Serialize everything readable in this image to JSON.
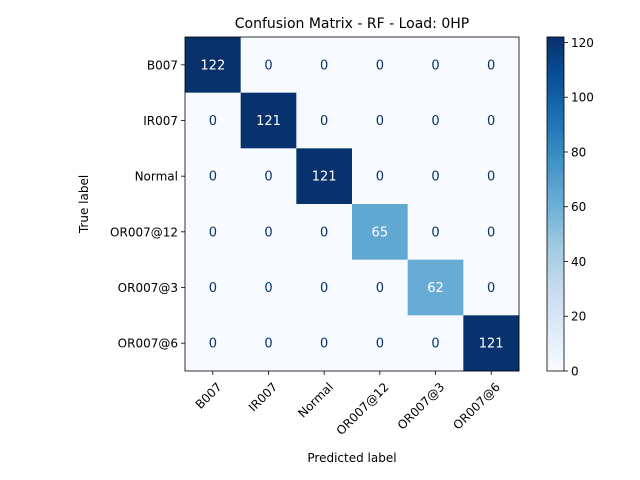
{
  "chart_data": {
    "type": "heatmap",
    "title": "Confusion Matrix - RF - Load: 0HP",
    "xlabel": "Predicted label",
    "ylabel": "True label",
    "x_categories": [
      "B007",
      "IR007",
      "Normal",
      "OR007@12",
      "OR007@3",
      "OR007@6"
    ],
    "y_categories": [
      "B007",
      "IR007",
      "Normal",
      "OR007@12",
      "OR007@3",
      "OR007@6"
    ],
    "values": [
      [
        122,
        0,
        0,
        0,
        0,
        0
      ],
      [
        0,
        121,
        0,
        0,
        0,
        0
      ],
      [
        0,
        0,
        121,
        0,
        0,
        0
      ],
      [
        0,
        0,
        0,
        65,
        0,
        0
      ],
      [
        0,
        0,
        0,
        0,
        62,
        0
      ],
      [
        0,
        0,
        0,
        0,
        0,
        121
      ]
    ],
    "colormap": "Blues",
    "colorbar": {
      "range": [
        0,
        122
      ],
      "ticks": [
        "0",
        "20",
        "40",
        "60",
        "80",
        "100",
        "120"
      ]
    },
    "grid": false,
    "colors": {
      "low": "#f7fbff",
      "high": "#08306b",
      "text_dark_cell": "#ffffff",
      "text_light_cell": "#08306b"
    }
  }
}
